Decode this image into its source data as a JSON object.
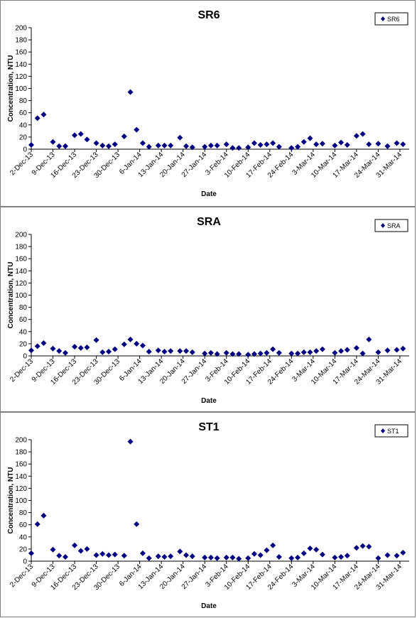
{
  "chart_data": [
    {
      "type": "scatter",
      "title": "SR6",
      "xlabel": "Date",
      "ylabel": "Concentration, NTU",
      "ylim": [
        0,
        200
      ],
      "yticks": [
        0,
        20,
        40,
        60,
        80,
        100,
        120,
        140,
        160,
        180,
        200
      ],
      "xlim": [
        "2-Dec-13",
        "3-Apr-14"
      ],
      "xtick_labels": [
        "2-Dec-13",
        "9-Dec-13",
        "16-Dec-13",
        "23-Dec-13",
        "30-Dec-13",
        "6-Jan-14",
        "13-Jan-14",
        "20-Jan-14",
        "27-Jan-14",
        "3-Feb-14",
        "10-Feb-14",
        "17-Feb-14",
        "24-Feb-14",
        "3-Mar-14",
        "10-Mar-14",
        "17-Mar-14",
        "24-Mar-14",
        "31-Mar-14"
      ],
      "legend_position": "top-right",
      "grid": false,
      "marker_color": "#000080",
      "series": [
        {
          "name": "SR6",
          "points": [
            {
              "x": "2-Dec-13",
              "y": 7
            },
            {
              "x": "4-Dec-13",
              "y": 51
            },
            {
              "x": "6-Dec-13",
              "y": 57
            },
            {
              "x": "9-Dec-13",
              "y": 12
            },
            {
              "x": "11-Dec-13",
              "y": 5
            },
            {
              "x": "13-Dec-13",
              "y": 5
            },
            {
              "x": "16-Dec-13",
              "y": 23
            },
            {
              "x": "18-Dec-13",
              "y": 25
            },
            {
              "x": "20-Dec-13",
              "y": 16
            },
            {
              "x": "23-Dec-13",
              "y": 10
            },
            {
              "x": "25-Dec-13",
              "y": 6
            },
            {
              "x": "27-Dec-13",
              "y": 5
            },
            {
              "x": "29-Dec-13",
              "y": 8
            },
            {
              "x": "1-Jan-14",
              "y": 21
            },
            {
              "x": "3-Jan-14",
              "y": 94
            },
            {
              "x": "5-Jan-14",
              "y": 32
            },
            {
              "x": "7-Jan-14",
              "y": 10
            },
            {
              "x": "9-Jan-14",
              "y": 4
            },
            {
              "x": "12-Jan-14",
              "y": 6
            },
            {
              "x": "14-Jan-14",
              "y": 6
            },
            {
              "x": "16-Jan-14",
              "y": 6
            },
            {
              "x": "19-Jan-14",
              "y": 19
            },
            {
              "x": "21-Jan-14",
              "y": 5
            },
            {
              "x": "23-Jan-14",
              "y": 3
            },
            {
              "x": "27-Jan-14",
              "y": 4
            },
            {
              "x": "29-Jan-14",
              "y": 6
            },
            {
              "x": "31-Jan-14",
              "y": 6
            },
            {
              "x": "3-Feb-14",
              "y": 8
            },
            {
              "x": "5-Feb-14",
              "y": 2
            },
            {
              "x": "7-Feb-14",
              "y": 2
            },
            {
              "x": "10-Feb-14",
              "y": 3
            },
            {
              "x": "12-Feb-14",
              "y": 10
            },
            {
              "x": "14-Feb-14",
              "y": 7
            },
            {
              "x": "16-Feb-14",
              "y": 8
            },
            {
              "x": "18-Feb-14",
              "y": 10
            },
            {
              "x": "20-Feb-14",
              "y": 4
            },
            {
              "x": "24-Feb-14",
              "y": 2
            },
            {
              "x": "26-Feb-14",
              "y": 4
            },
            {
              "x": "28-Feb-14",
              "y": 12
            },
            {
              "x": "2-Mar-14",
              "y": 18
            },
            {
              "x": "4-Mar-14",
              "y": 8
            },
            {
              "x": "6-Mar-14",
              "y": 9
            },
            {
              "x": "10-Mar-14",
              "y": 6
            },
            {
              "x": "12-Mar-14",
              "y": 11
            },
            {
              "x": "14-Mar-14",
              "y": 7
            },
            {
              "x": "17-Mar-14",
              "y": 22
            },
            {
              "x": "19-Mar-14",
              "y": 25
            },
            {
              "x": "21-Mar-14",
              "y": 8
            },
            {
              "x": "24-Mar-14",
              "y": 9
            },
            {
              "x": "27-Mar-14",
              "y": 5
            },
            {
              "x": "30-Mar-14",
              "y": 10
            },
            {
              "x": "1-Apr-14",
              "y": 8
            }
          ]
        }
      ]
    },
    {
      "type": "scatter",
      "title": "SRA",
      "xlabel": "Date",
      "ylabel": "Concentration, NTU",
      "ylim": [
        0,
        200
      ],
      "yticks": [
        0,
        20,
        40,
        60,
        80,
        100,
        120,
        140,
        160,
        180,
        200
      ],
      "xlim": [
        "2-Dec-13",
        "3-Apr-14"
      ],
      "xtick_labels": [
        "2-Dec-13",
        "9-Dec-13",
        "16-Dec-13",
        "23-Dec-13",
        "30-Dec-13",
        "6-Jan-14",
        "13-Jan-14",
        "20-Jan-14",
        "27-Jan-14",
        "3-Feb-14",
        "10-Feb-14",
        "17-Feb-14",
        "24-Feb-14",
        "3-Mar-14",
        "10-Mar-14",
        "17-Mar-14",
        "24-Mar-14",
        "31-Mar-14"
      ],
      "legend_position": "top-right",
      "grid": false,
      "marker_color": "#000080",
      "series": [
        {
          "name": "SRA",
          "points": [
            {
              "x": "2-Dec-13",
              "y": 9
            },
            {
              "x": "4-Dec-13",
              "y": 16
            },
            {
              "x": "6-Dec-13",
              "y": 21
            },
            {
              "x": "9-Dec-13",
              "y": 12
            },
            {
              "x": "11-Dec-13",
              "y": 8
            },
            {
              "x": "13-Dec-13",
              "y": 5
            },
            {
              "x": "16-Dec-13",
              "y": 15
            },
            {
              "x": "18-Dec-13",
              "y": 13
            },
            {
              "x": "20-Dec-13",
              "y": 14
            },
            {
              "x": "23-Dec-13",
              "y": 26
            },
            {
              "x": "25-Dec-13",
              "y": 6
            },
            {
              "x": "27-Dec-13",
              "y": 7
            },
            {
              "x": "29-Dec-13",
              "y": 11
            },
            {
              "x": "1-Jan-14",
              "y": 19
            },
            {
              "x": "3-Jan-14",
              "y": 27
            },
            {
              "x": "5-Jan-14",
              "y": 20
            },
            {
              "x": "7-Jan-14",
              "y": 17
            },
            {
              "x": "9-Jan-14",
              "y": 7
            },
            {
              "x": "12-Jan-14",
              "y": 9
            },
            {
              "x": "14-Jan-14",
              "y": 7
            },
            {
              "x": "16-Jan-14",
              "y": 8
            },
            {
              "x": "19-Jan-14",
              "y": 8
            },
            {
              "x": "21-Jan-14",
              "y": 8
            },
            {
              "x": "23-Jan-14",
              "y": 6
            },
            {
              "x": "27-Jan-14",
              "y": 4
            },
            {
              "x": "29-Jan-14",
              "y": 5
            },
            {
              "x": "31-Jan-14",
              "y": 3
            },
            {
              "x": "3-Feb-14",
              "y": 5
            },
            {
              "x": "5-Feb-14",
              "y": 3
            },
            {
              "x": "7-Feb-14",
              "y": 3
            },
            {
              "x": "10-Feb-14",
              "y": 2
            },
            {
              "x": "12-Feb-14",
              "y": 3
            },
            {
              "x": "14-Feb-14",
              "y": 4
            },
            {
              "x": "16-Feb-14",
              "y": 5
            },
            {
              "x": "18-Feb-14",
              "y": 11
            },
            {
              "x": "20-Feb-14",
              "y": 5
            },
            {
              "x": "24-Feb-14",
              "y": 4
            },
            {
              "x": "26-Feb-14",
              "y": 4
            },
            {
              "x": "28-Feb-14",
              "y": 6
            },
            {
              "x": "2-Mar-14",
              "y": 6
            },
            {
              "x": "4-Mar-14",
              "y": 8
            },
            {
              "x": "6-Mar-14",
              "y": 11
            },
            {
              "x": "10-Mar-14",
              "y": 5
            },
            {
              "x": "12-Mar-14",
              "y": 8
            },
            {
              "x": "14-Mar-14",
              "y": 10
            },
            {
              "x": "17-Mar-14",
              "y": 13
            },
            {
              "x": "19-Mar-14",
              "y": 4
            },
            {
              "x": "21-Mar-14",
              "y": 27
            },
            {
              "x": "24-Mar-14",
              "y": 6
            },
            {
              "x": "27-Mar-14",
              "y": 9
            },
            {
              "x": "30-Mar-14",
              "y": 10
            },
            {
              "x": "1-Apr-14",
              "y": 12
            }
          ]
        }
      ]
    },
    {
      "type": "scatter",
      "title": "ST1",
      "xlabel": "Date",
      "ylabel": "Concentration, NTU",
      "ylim": [
        0,
        200
      ],
      "yticks": [
        0,
        20,
        40,
        60,
        80,
        100,
        120,
        140,
        160,
        180,
        200
      ],
      "xlim": [
        "2-Dec-13",
        "3-Apr-14"
      ],
      "xtick_labels": [
        "2-Dec-13",
        "9-Dec-13",
        "16-Dec-13",
        "23-Dec-13",
        "30-Dec-13",
        "6-Jan-14",
        "13-Jan-14",
        "20-Jan-14",
        "27-Jan-14",
        "3-Feb-14",
        "10-Feb-14",
        "17-Feb-14",
        "24-Feb-14",
        "3-Mar-14",
        "10-Mar-14",
        "17-Mar-14",
        "24-Mar-14",
        "31-Mar-14"
      ],
      "legend_position": "top-right",
      "grid": false,
      "marker_color": "#000080",
      "series": [
        {
          "name": "ST1",
          "points": [
            {
              "x": "2-Dec-13",
              "y": 13
            },
            {
              "x": "4-Dec-13",
              "y": 61
            },
            {
              "x": "6-Dec-13",
              "y": 75
            },
            {
              "x": "9-Dec-13",
              "y": 19
            },
            {
              "x": "11-Dec-13",
              "y": 9
            },
            {
              "x": "13-Dec-13",
              "y": 7
            },
            {
              "x": "16-Dec-13",
              "y": 26
            },
            {
              "x": "18-Dec-13",
              "y": 17
            },
            {
              "x": "20-Dec-13",
              "y": 20
            },
            {
              "x": "23-Dec-13",
              "y": 10
            },
            {
              "x": "25-Dec-13",
              "y": 12
            },
            {
              "x": "27-Dec-13",
              "y": 10
            },
            {
              "x": "29-Dec-13",
              "y": 11
            },
            {
              "x": "1-Jan-14",
              "y": 9
            },
            {
              "x": "3-Jan-14",
              "y": 197
            },
            {
              "x": "5-Jan-14",
              "y": 61
            },
            {
              "x": "7-Jan-14",
              "y": 13
            },
            {
              "x": "9-Jan-14",
              "y": 5
            },
            {
              "x": "12-Jan-14",
              "y": 8
            },
            {
              "x": "14-Jan-14",
              "y": 7
            },
            {
              "x": "16-Jan-14",
              "y": 8
            },
            {
              "x": "19-Jan-14",
              "y": 16
            },
            {
              "x": "21-Jan-14",
              "y": 10
            },
            {
              "x": "23-Jan-14",
              "y": 8
            },
            {
              "x": "27-Jan-14",
              "y": 6
            },
            {
              "x": "29-Jan-14",
              "y": 6
            },
            {
              "x": "31-Jan-14",
              "y": 5
            },
            {
              "x": "3-Feb-14",
              "y": 6
            },
            {
              "x": "5-Feb-14",
              "y": 6
            },
            {
              "x": "7-Feb-14",
              "y": 4
            },
            {
              "x": "10-Feb-14",
              "y": 5
            },
            {
              "x": "12-Feb-14",
              "y": 12
            },
            {
              "x": "14-Feb-14",
              "y": 10
            },
            {
              "x": "16-Feb-14",
              "y": 18
            },
            {
              "x": "18-Feb-14",
              "y": 26
            },
            {
              "x": "20-Feb-14",
              "y": 7
            },
            {
              "x": "24-Feb-14",
              "y": 5
            },
            {
              "x": "26-Feb-14",
              "y": 6
            },
            {
              "x": "28-Feb-14",
              "y": 13
            },
            {
              "x": "2-Mar-14",
              "y": 21
            },
            {
              "x": "4-Mar-14",
              "y": 19
            },
            {
              "x": "6-Mar-14",
              "y": 11
            },
            {
              "x": "10-Mar-14",
              "y": 6
            },
            {
              "x": "12-Mar-14",
              "y": 7
            },
            {
              "x": "14-Mar-14",
              "y": 9
            },
            {
              "x": "17-Mar-14",
              "y": 22
            },
            {
              "x": "19-Mar-14",
              "y": 25
            },
            {
              "x": "21-Mar-14",
              "y": 24
            },
            {
              "x": "24-Mar-14",
              "y": 5
            },
            {
              "x": "27-Mar-14",
              "y": 10
            },
            {
              "x": "30-Mar-14",
              "y": 9
            },
            {
              "x": "1-Apr-14",
              "y": 14
            }
          ]
        }
      ]
    }
  ]
}
